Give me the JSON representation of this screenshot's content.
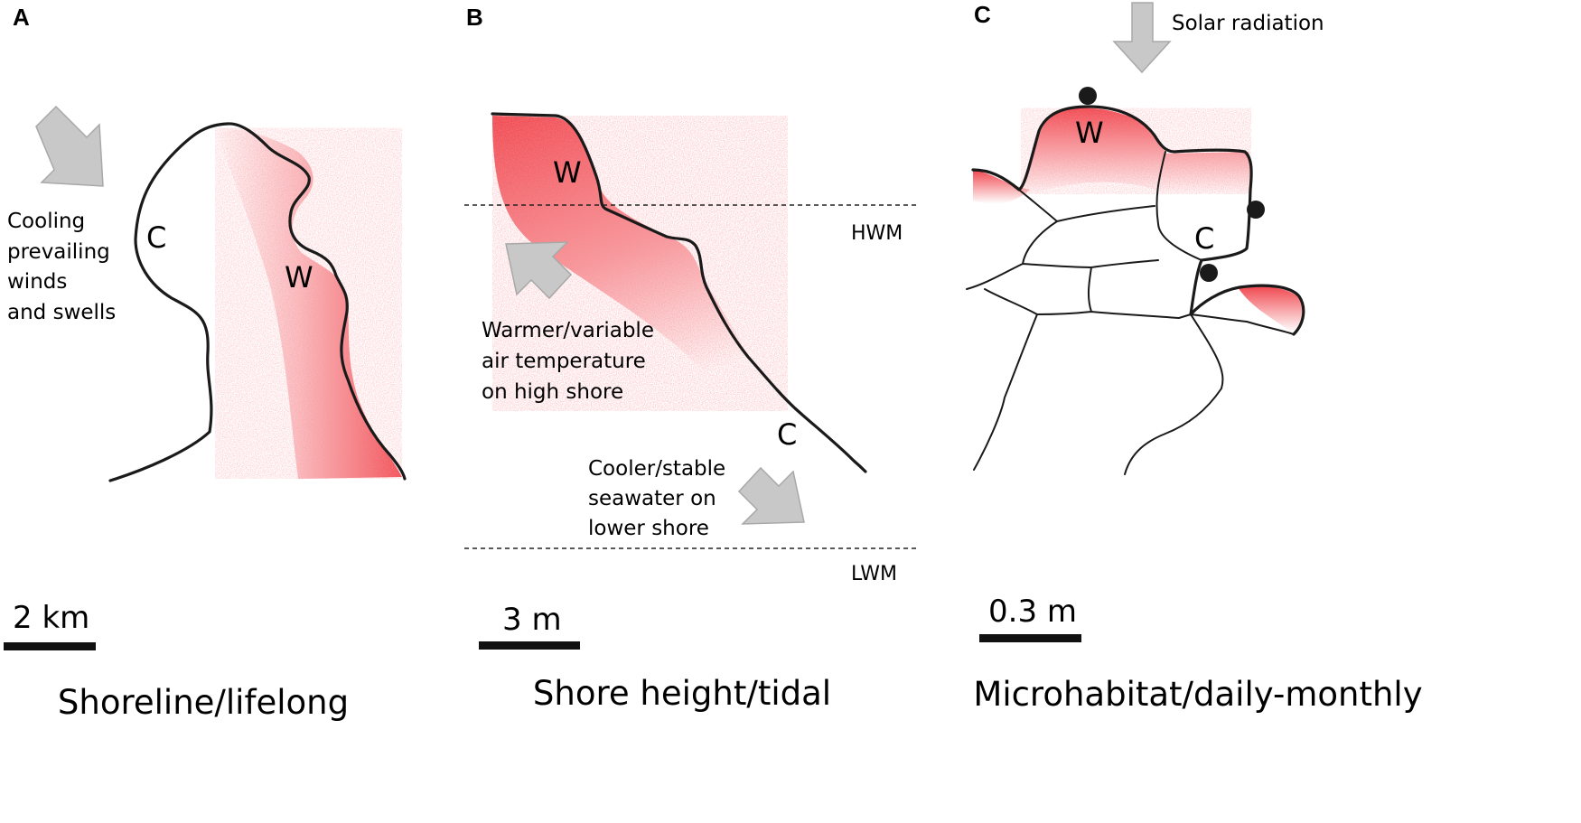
{
  "panels": [
    {
      "id": "A",
      "label": "A",
      "annotation_lines": [
        "Cooling",
        "prevailing",
        "winds",
        "and swells"
      ],
      "cool_mark": "C",
      "warm_mark": "W",
      "scale_label": "2 km",
      "caption": "Shoreline/lifelong"
    },
    {
      "id": "B",
      "label": "B",
      "warm_mark": "W",
      "cool_mark": "C",
      "hwm_label": "HWM",
      "lwm_label": "LWM",
      "upper_annotation_lines": [
        "Warmer/variable",
        "air temperature",
        "on high shore"
      ],
      "lower_annotation_lines": [
        "Cooler/stable",
        "seawater on",
        "lower shore"
      ],
      "scale_label": "3 m",
      "caption": "Shore height/tidal"
    },
    {
      "id": "C",
      "label": "C",
      "annotation": "Solar radiation",
      "warm_mark": "W",
      "cool_mark": "C",
      "scale_label": "0.3 m",
      "caption": "Microhabitat/daily-monthly"
    }
  ],
  "colors": {
    "warm": "#f0484f",
    "rock_line": "#1a1a1a",
    "arrow": "#c8c8c8"
  }
}
